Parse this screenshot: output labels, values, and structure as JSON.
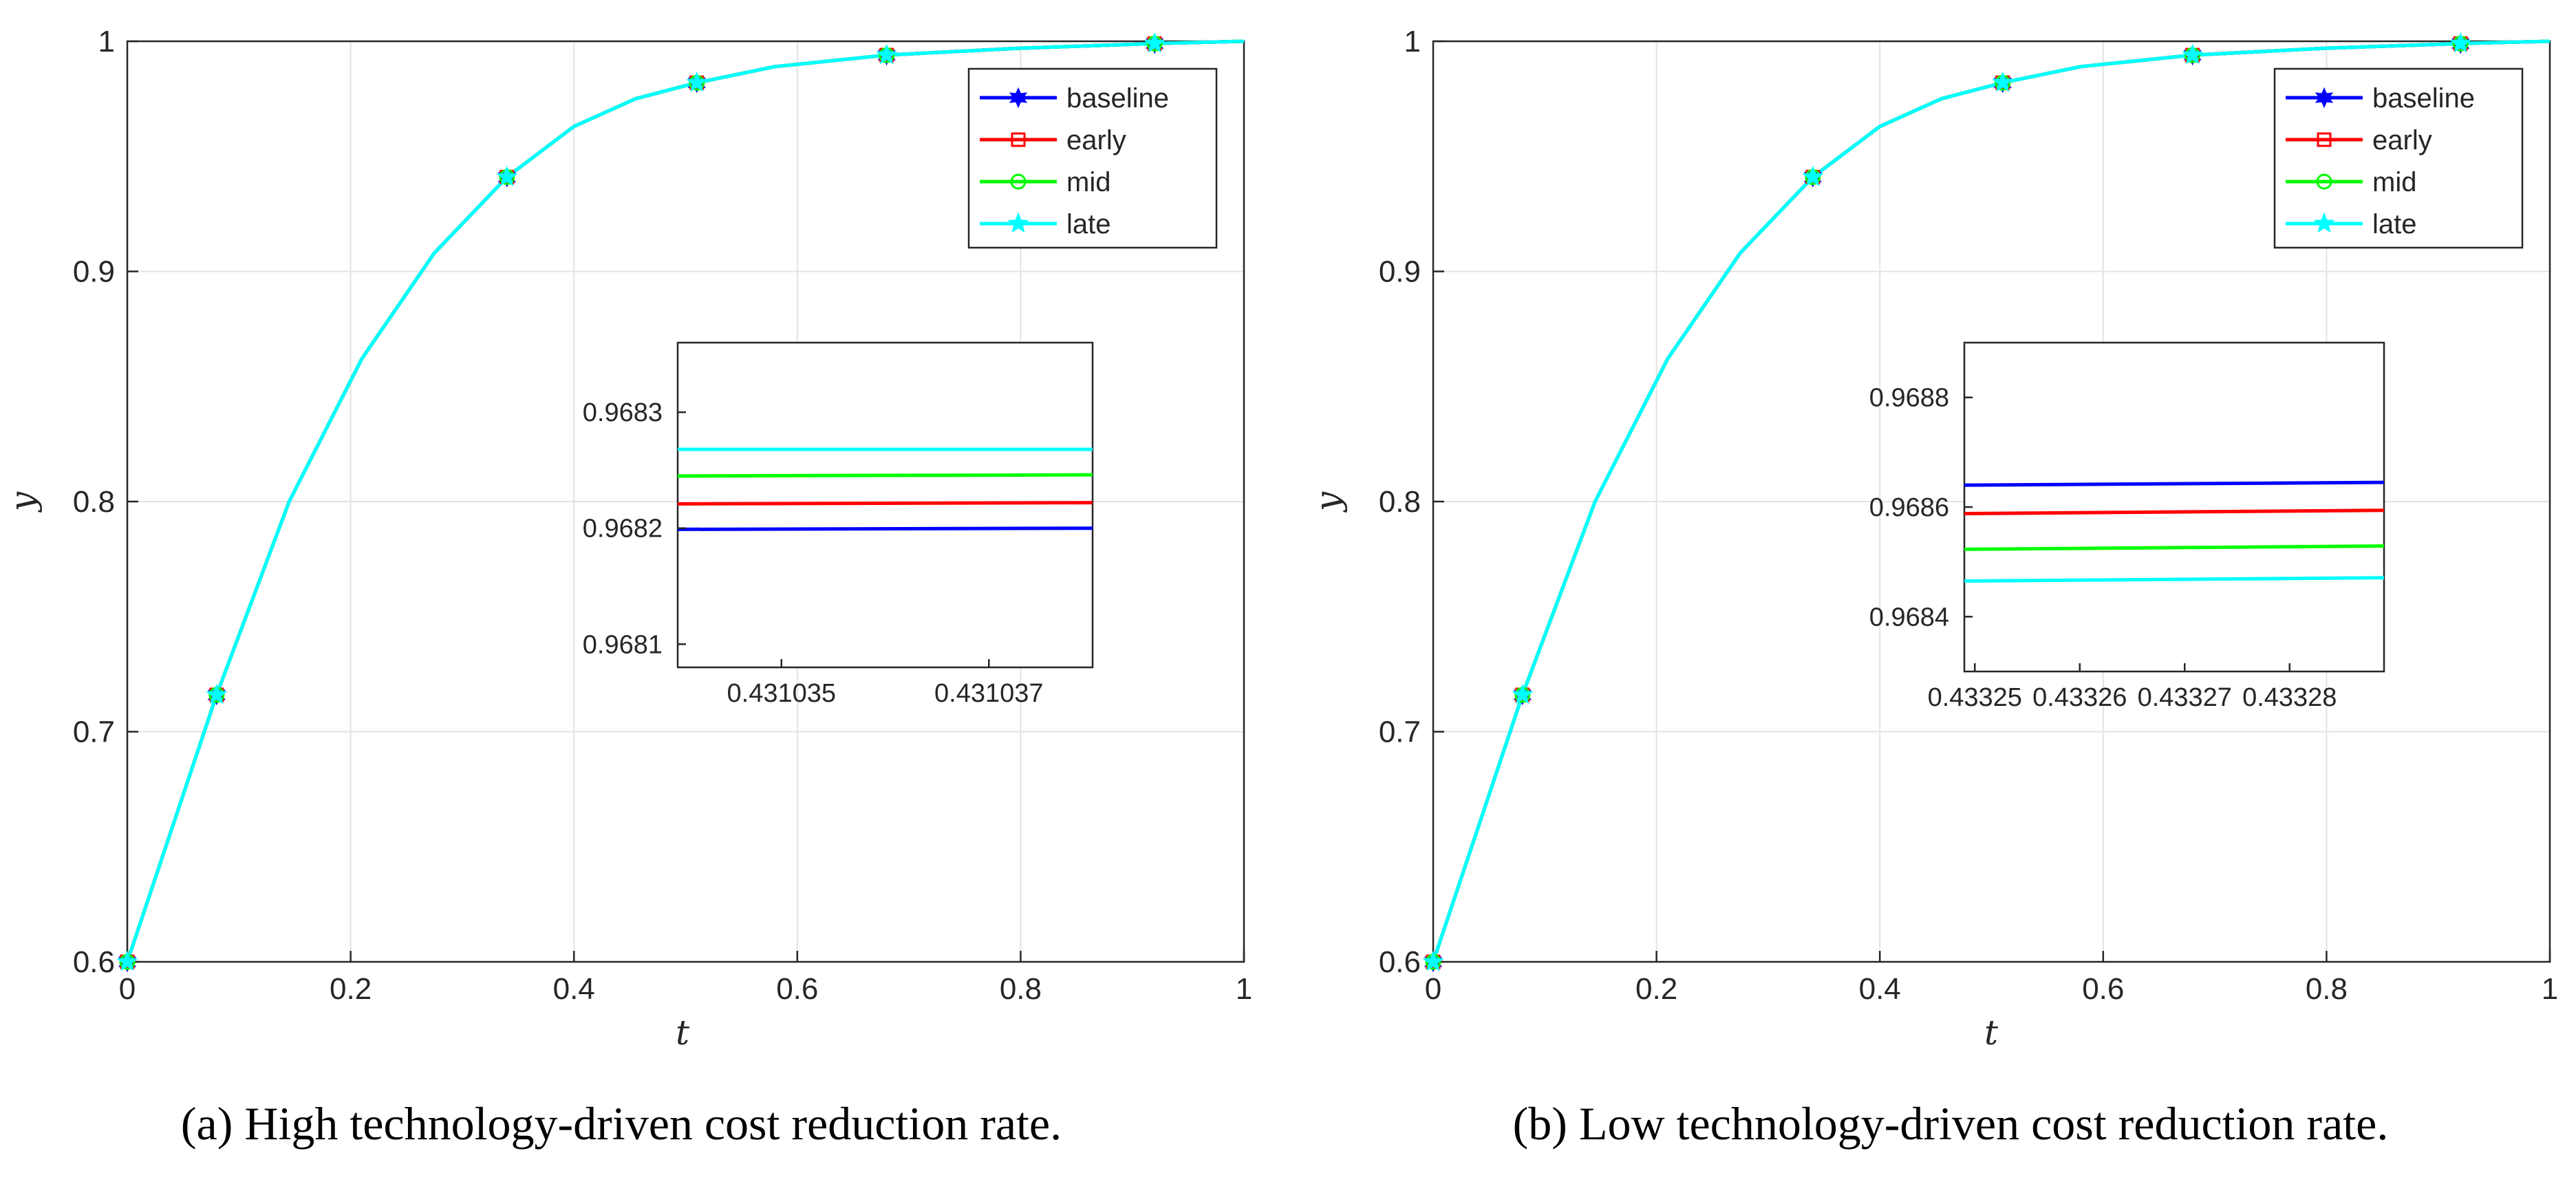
{
  "colors": {
    "baseline": "#0000ff",
    "early": "#ff0000",
    "mid": "#00ff00",
    "late": "#00ffff",
    "grid": "#e3e3e3",
    "axis": "#262626"
  },
  "chart_data": [
    {
      "type": "line",
      "caption": "(a) High technology-driven cost reduction rate.",
      "xlabel": "t",
      "ylabel": "y",
      "xlim": [
        0,
        1
      ],
      "ylim": [
        0.6,
        1
      ],
      "xticks": [
        0,
        0.2,
        0.4,
        0.6,
        0.8,
        1
      ],
      "xtick_labels": [
        "0",
        "0.2",
        "0.4",
        "0.6",
        "0.8",
        "1"
      ],
      "yticks": [
        0.6,
        0.7,
        0.8,
        0.9,
        1
      ],
      "ytick_labels": [
        "0.6",
        "0.7",
        "0.8",
        "0.9",
        "1"
      ],
      "grid": true,
      "legend": "top-right",
      "x": [
        0,
        0.08,
        0.145,
        0.21,
        0.275,
        0.34,
        0.4,
        0.455,
        0.51,
        0.58,
        0.68,
        0.8,
        0.92,
        1.0
      ],
      "y": [
        0.6,
        0.716,
        0.8,
        0.862,
        0.908,
        0.941,
        0.963,
        0.975,
        0.982,
        0.989,
        0.994,
        0.997,
        0.999,
        1.0
      ],
      "marker_x": [
        0,
        0.08,
        0.34,
        0.51,
        0.68,
        0.92
      ],
      "series": [
        {
          "name": "baseline",
          "marker": "hexagram"
        },
        {
          "name": "early",
          "marker": "square"
        },
        {
          "name": "mid",
          "marker": "circle"
        },
        {
          "name": "late",
          "marker": "pentagram"
        }
      ],
      "inset": {
        "xlim": [
          0.431034,
          0.431038
        ],
        "ylim": [
          0.96808,
          0.96836
        ],
        "xticks": [
          0.431035,
          0.431037
        ],
        "xtick_labels": [
          "0.431035",
          "0.431037"
        ],
        "yticks": [
          0.9681,
          0.9682,
          0.9683
        ],
        "ytick_labels": [
          "0.9681",
          "0.9682",
          "0.9683"
        ],
        "lines": [
          {
            "name": "baseline",
            "y": [
              0.968199,
              0.9682
            ]
          },
          {
            "name": "early",
            "y": [
              0.968221,
              0.968222
            ]
          },
          {
            "name": "mid",
            "y": [
              0.968245,
              0.968246
            ]
          },
          {
            "name": "late",
            "y": [
              0.968268,
              0.968268
            ]
          }
        ]
      }
    },
    {
      "type": "line",
      "caption": "(b) Low technology-driven cost reduction rate.",
      "xlabel": "t",
      "ylabel": "y",
      "xlim": [
        0,
        1
      ],
      "ylim": [
        0.6,
        1
      ],
      "xticks": [
        0,
        0.2,
        0.4,
        0.6,
        0.8,
        1
      ],
      "xtick_labels": [
        "0",
        "0.2",
        "0.4",
        "0.6",
        "0.8",
        "1"
      ],
      "yticks": [
        0.6,
        0.7,
        0.8,
        0.9,
        1
      ],
      "ytick_labels": [
        "0.6",
        "0.7",
        "0.8",
        "0.9",
        "1"
      ],
      "grid": true,
      "legend": "top-right",
      "x": [
        0,
        0.08,
        0.145,
        0.21,
        0.275,
        0.34,
        0.4,
        0.455,
        0.51,
        0.58,
        0.68,
        0.8,
        0.92,
        1.0
      ],
      "y": [
        0.6,
        0.716,
        0.8,
        0.862,
        0.908,
        0.941,
        0.963,
        0.975,
        0.982,
        0.989,
        0.994,
        0.997,
        0.999,
        1.0
      ],
      "marker_x": [
        0,
        0.08,
        0.34,
        0.51,
        0.68,
        0.92
      ],
      "series": [
        {
          "name": "baseline",
          "marker": "hexagram"
        },
        {
          "name": "early",
          "marker": "square"
        },
        {
          "name": "mid",
          "marker": "circle"
        },
        {
          "name": "late",
          "marker": "pentagram"
        }
      ],
      "inset": {
        "xlim": [
          0.433249,
          0.433289
        ],
        "ylim": [
          0.9683,
          0.9689
        ],
        "xticks": [
          0.43325,
          0.43326,
          0.43327,
          0.43328
        ],
        "xtick_labels": [
          "0.43325",
          "0.43326",
          "0.43327",
          "0.43328"
        ],
        "yticks": [
          0.9684,
          0.9686,
          0.9688
        ],
        "ytick_labels": [
          "0.9684",
          "0.9686",
          "0.9688"
        ],
        "lines": [
          {
            "name": "baseline",
            "y": [
              0.96864,
              0.968645
            ]
          },
          {
            "name": "early",
            "y": [
              0.968588,
              0.968594
            ]
          },
          {
            "name": "mid",
            "y": [
              0.968523,
              0.968529
            ]
          },
          {
            "name": "late",
            "y": [
              0.968465,
              0.968471
            ]
          }
        ]
      }
    }
  ]
}
